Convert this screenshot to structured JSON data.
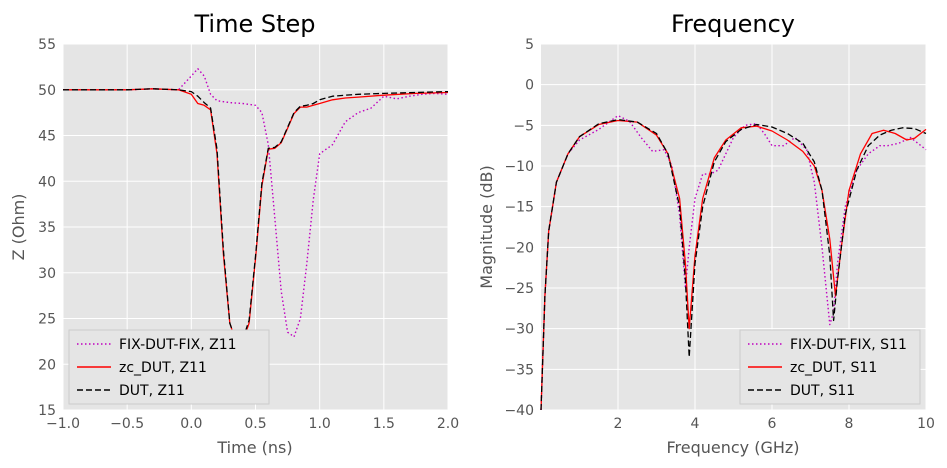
{
  "chart_data": [
    {
      "type": "line",
      "title": "Time Step",
      "xlabel": "Time (ns)",
      "ylabel": "Z (Ohm)",
      "xlim": [
        -1.0,
        2.0
      ],
      "ylim": [
        15,
        55
      ],
      "xticks": [
        -1.0,
        -0.5,
        0.0,
        0.5,
        1.0,
        1.5,
        2.0
      ],
      "xtick_labels": [
        "−1.0",
        "−0.5",
        "0.0",
        "0.5",
        "1.0",
        "1.5",
        "2.0"
      ],
      "yticks": [
        15,
        20,
        25,
        30,
        35,
        40,
        45,
        50,
        55
      ],
      "ytick_labels": [
        "15",
        "20",
        "25",
        "30",
        "35",
        "40",
        "45",
        "50",
        "55"
      ],
      "grid": true,
      "legend_position": "lower-left",
      "series": [
        {
          "name": "FIX-DUT-FIX, Z11",
          "color": "#bf00bf",
          "style": "dotted",
          "x": [
            -1.0,
            -0.5,
            -0.3,
            -0.1,
            0.0,
            0.05,
            0.1,
            0.15,
            0.2,
            0.3,
            0.4,
            0.5,
            0.55,
            0.6,
            0.65,
            0.7,
            0.75,
            0.8,
            0.85,
            0.9,
            0.95,
            1.0,
            1.1,
            1.2,
            1.3,
            1.4,
            1.5,
            1.6,
            1.7,
            1.8,
            1.9,
            2.0
          ],
          "values": [
            50.0,
            50.0,
            50.1,
            50.0,
            51.5,
            52.3,
            51.5,
            49.5,
            48.8,
            48.6,
            48.5,
            48.3,
            47.5,
            44.0,
            36.0,
            28.0,
            23.5,
            23.0,
            25.0,
            31.0,
            38.0,
            43.0,
            44.0,
            46.5,
            47.5,
            48.0,
            49.3,
            49.0,
            49.3,
            49.5,
            49.6,
            49.5
          ]
        },
        {
          "name": "zc_DUT, Z11",
          "color": "#ff0000",
          "style": "solid",
          "x": [
            -1.0,
            -0.5,
            -0.3,
            -0.1,
            0.0,
            0.05,
            0.1,
            0.15,
            0.2,
            0.25,
            0.3,
            0.35,
            0.4,
            0.45,
            0.5,
            0.55,
            0.6,
            0.65,
            0.7,
            0.75,
            0.8,
            0.85,
            0.9,
            0.95,
            1.0,
            1.1,
            1.2,
            1.3,
            1.5,
            1.75,
            2.0
          ],
          "values": [
            50.0,
            50.0,
            50.1,
            50.0,
            49.5,
            48.5,
            48.3,
            47.8,
            43.0,
            32.0,
            24.5,
            22.3,
            22.5,
            24.5,
            31.5,
            39.5,
            43.5,
            43.6,
            44.2,
            45.8,
            47.4,
            48.1,
            48.1,
            48.3,
            48.5,
            48.9,
            49.1,
            49.2,
            49.4,
            49.6,
            49.7
          ]
        },
        {
          "name": "DUT, Z11",
          "color": "#000000",
          "style": "dashed",
          "x": [
            -1.0,
            -0.5,
            -0.3,
            -0.1,
            0.0,
            0.05,
            0.1,
            0.15,
            0.2,
            0.25,
            0.3,
            0.35,
            0.4,
            0.45,
            0.5,
            0.55,
            0.6,
            0.65,
            0.7,
            0.75,
            0.8,
            0.85,
            0.9,
            0.95,
            1.0,
            1.1,
            1.2,
            1.3,
            1.5,
            1.75,
            2.0
          ],
          "values": [
            50.0,
            50.0,
            50.1,
            50.0,
            49.8,
            49.3,
            48.6,
            48.0,
            43.5,
            32.5,
            24.5,
            22.5,
            22.7,
            24.8,
            31.8,
            39.8,
            43.6,
            43.7,
            44.3,
            45.9,
            47.5,
            48.2,
            48.3,
            48.5,
            48.9,
            49.3,
            49.4,
            49.5,
            49.6,
            49.7,
            49.8
          ]
        }
      ]
    },
    {
      "type": "line",
      "title": "Frequency",
      "xlabel": "Frequency (GHz)",
      "ylabel": "Magnitude (dB)",
      "xlim": [
        0,
        10
      ],
      "ylim": [
        -40,
        5
      ],
      "xticks": [
        2,
        4,
        6,
        8,
        10
      ],
      "xtick_labels": [
        "2",
        "4",
        "6",
        "8",
        "10"
      ],
      "yticks": [
        -40,
        -35,
        -30,
        -25,
        -20,
        -15,
        -10,
        -5,
        0,
        5
      ],
      "ytick_labels": [
        "−40",
        "−35",
        "−30",
        "−25",
        "−20",
        "−15",
        "−10",
        "−5",
        "0",
        "5"
      ],
      "grid": true,
      "legend_position": "lower-right",
      "series": [
        {
          "name": "FIX-DUT-FIX, S11",
          "color": "#bf00bf",
          "style": "dotted",
          "x": [
            0.0,
            0.1,
            0.2,
            0.4,
            0.7,
            1.0,
            1.5,
            2.0,
            2.3,
            2.6,
            2.9,
            3.2,
            3.4,
            3.6,
            3.75,
            3.85,
            4.0,
            4.2,
            4.4,
            4.6,
            4.8,
            5.0,
            5.3,
            5.6,
            5.8,
            6.0,
            6.3,
            6.6,
            6.9,
            7.1,
            7.3,
            7.5,
            7.6,
            7.7,
            7.9,
            8.2,
            8.5,
            8.8,
            9.0,
            9.3,
            9.6,
            10.0
          ],
          "values": [
            -40.0,
            -26.0,
            -18.0,
            -12.0,
            -8.5,
            -6.8,
            -5.5,
            -3.8,
            -4.5,
            -6.5,
            -8.2,
            -8.0,
            -10.0,
            -16.0,
            -25.0,
            -20.0,
            -14.0,
            -11.0,
            -11.0,
            -10.5,
            -8.5,
            -6.5,
            -5.0,
            -4.8,
            -6.0,
            -7.5,
            -7.5,
            -6.5,
            -8.0,
            -12.0,
            -20.0,
            -29.5,
            -28.0,
            -22.0,
            -15.0,
            -10.5,
            -8.5,
            -7.5,
            -7.5,
            -7.2,
            -6.5,
            -8.0
          ]
        },
        {
          "name": "zc_DUT, S11",
          "color": "#ff0000",
          "style": "solid",
          "x": [
            0.0,
            0.1,
            0.2,
            0.4,
            0.7,
            1.0,
            1.5,
            2.0,
            2.5,
            3.0,
            3.3,
            3.6,
            3.75,
            3.85,
            4.0,
            4.2,
            4.5,
            4.8,
            5.2,
            5.6,
            6.0,
            6.4,
            6.8,
            7.1,
            7.3,
            7.5,
            7.65,
            7.8,
            8.0,
            8.3,
            8.6,
            8.9,
            9.2,
            9.5,
            9.7,
            10.0
          ],
          "values": [
            -40.0,
            -26.0,
            -18.0,
            -12.0,
            -8.5,
            -6.4,
            -4.9,
            -4.4,
            -4.6,
            -6.2,
            -8.5,
            -14.0,
            -22.0,
            -30.0,
            -21.0,
            -14.0,
            -9.0,
            -6.8,
            -5.3,
            -5.1,
            -5.7,
            -6.8,
            -8.2,
            -10.0,
            -13.0,
            -19.0,
            -26.0,
            -20.0,
            -13.0,
            -8.5,
            -6.0,
            -5.6,
            -6.0,
            -6.8,
            -6.6,
            -5.5
          ]
        },
        {
          "name": "DUT, S11",
          "color": "#000000",
          "style": "dashed",
          "x": [
            0.0,
            0.1,
            0.2,
            0.4,
            0.7,
            1.0,
            1.5,
            2.0,
            2.5,
            3.0,
            3.3,
            3.6,
            3.75,
            3.85,
            4.0,
            4.2,
            4.5,
            4.8,
            5.2,
            5.6,
            6.0,
            6.4,
            6.8,
            7.1,
            7.3,
            7.5,
            7.6,
            7.7,
            7.9,
            8.2,
            8.5,
            8.8,
            9.1,
            9.4,
            9.7,
            10.0
          ],
          "values": [
            -40.0,
            -26.0,
            -18.0,
            -12.0,
            -8.5,
            -6.4,
            -4.8,
            -4.3,
            -4.6,
            -6.0,
            -8.5,
            -15.0,
            -24.0,
            -33.5,
            -22.0,
            -15.0,
            -9.5,
            -7.0,
            -5.5,
            -4.9,
            -5.2,
            -6.0,
            -7.2,
            -9.5,
            -13.0,
            -21.0,
            -29.0,
            -24.0,
            -16.0,
            -10.5,
            -7.5,
            -6.2,
            -5.6,
            -5.3,
            -5.4,
            -6.0
          ]
        }
      ]
    }
  ]
}
